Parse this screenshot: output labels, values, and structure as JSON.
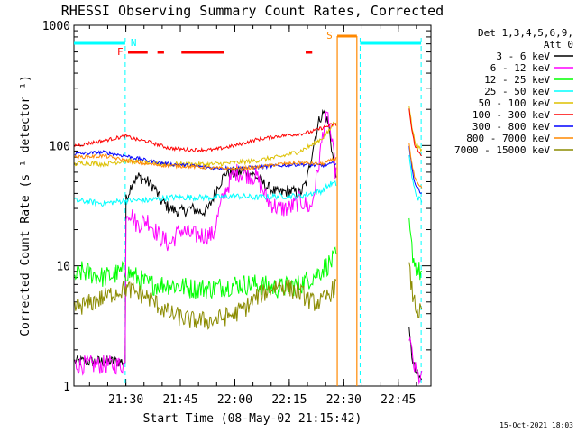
{
  "chart_data": {
    "type": "line",
    "title": "RHESSI Observing Summary Count Rates, Corrected",
    "xlabel": "Start Time (08-May-02 21:15:42)",
    "ylabel": "Corrected Count Rate (s⁻¹ detector⁻¹)",
    "yscale": "log",
    "ylim": [
      1,
      1000
    ],
    "xlim": [
      21.2617,
      22.9
    ],
    "xticks": [
      {
        "t": 21.5,
        "label": "21:30"
      },
      {
        "t": 21.75,
        "label": "21:45"
      },
      {
        "t": 22.0,
        "label": "22:00"
      },
      {
        "t": 22.25,
        "label": "22:15"
      },
      {
        "t": 22.5,
        "label": "22:30"
      },
      {
        "t": 22.75,
        "label": "22:45"
      }
    ],
    "yticks": [
      {
        "v": 1,
        "label": "1"
      },
      {
        "v": 10,
        "label": "10"
      },
      {
        "v": 100,
        "label": "100"
      },
      {
        "v": 1000,
        "label": "1000"
      }
    ],
    "grid": false,
    "legend_position": "top-right",
    "legend_header": [
      "Det 1,3,4,5,6,9,",
      "Att 0"
    ],
    "footer_date": "15-Oct-2021 18:03",
    "series": [
      {
        "name": "3 - 6 keV",
        "color": "#000000",
        "noise": 0.05,
        "x": [
          21.265,
          21.497,
          21.497,
          21.5,
          21.53,
          21.56,
          21.6,
          21.63,
          21.66,
          21.7,
          21.75,
          21.8,
          21.85,
          21.88,
          21.92,
          21.96,
          22.0,
          22.05,
          22.1,
          22.15,
          22.2,
          22.25,
          22.3,
          22.33,
          22.36,
          22.39,
          22.41,
          22.43,
          22.45,
          22.465
        ],
        "y": [
          1.6,
          1.6,
          30,
          35,
          50,
          55,
          50,
          45,
          35,
          30,
          28,
          30,
          28,
          30,
          45,
          60,
          58,
          62,
          55,
          45,
          40,
          42,
          40,
          50,
          100,
          170,
          190,
          150,
          80,
          60
        ]
      },
      {
        "name": "6 - 12 keV",
        "color": "#ff00ff",
        "noise": 0.08,
        "x": [
          21.265,
          21.497,
          21.497,
          21.52,
          21.55,
          21.6,
          21.65,
          21.7,
          21.75,
          21.8,
          21.85,
          21.9,
          21.95,
          22.0,
          22.05,
          22.1,
          22.15,
          22.2,
          22.25,
          22.3,
          22.35,
          22.38,
          22.41,
          22.43,
          22.45,
          22.465
        ],
        "y": [
          1.5,
          1.5,
          28,
          28,
          22,
          24,
          18,
          15,
          20,
          18,
          18,
          18,
          40,
          60,
          58,
          55,
          35,
          30,
          30,
          35,
          30,
          60,
          150,
          170,
          90,
          55
        ]
      },
      {
        "name": "12 - 25 keV",
        "color": "#00ff00",
        "noise": 0.09,
        "x": [
          21.265,
          21.3,
          21.4,
          21.5,
          21.55,
          21.6,
          21.7,
          21.8,
          21.9,
          22.0,
          22.1,
          22.2,
          22.3,
          22.35,
          22.39,
          22.42,
          22.45,
          22.465
        ],
        "y": [
          8,
          9,
          8,
          9,
          8,
          7,
          7,
          6.5,
          6.5,
          7,
          7,
          6.5,
          7,
          8,
          9,
          10,
          11,
          12
        ]
      },
      {
        "name": "25 - 50 keV",
        "color": "#00ffff",
        "noise": 0.025,
        "x": [
          21.265,
          21.4,
          21.5,
          21.6,
          21.7,
          21.8,
          21.9,
          22.0,
          22.1,
          22.2,
          22.3,
          22.4,
          22.44,
          22.465
        ],
        "y": [
          35,
          33,
          35,
          35,
          37,
          37,
          37,
          38,
          37,
          38,
          38,
          42,
          48,
          48
        ]
      },
      {
        "name": "50 - 100 keV",
        "color": "#ddc000",
        "noise": 0.02,
        "x": [
          21.265,
          21.3,
          21.4,
          21.5,
          21.6,
          21.7,
          21.8,
          21.9,
          22.0,
          22.1,
          22.2,
          22.3,
          22.35,
          22.4,
          22.43,
          22.45,
          22.465
        ],
        "y": [
          70,
          72,
          70,
          75,
          72,
          70,
          70,
          70,
          72,
          75,
          80,
          90,
          100,
          115,
          130,
          150,
          160
        ]
      },
      {
        "name": "100 - 300 keV",
        "color": "#ff0000",
        "noise": 0.015,
        "x": [
          21.265,
          21.3,
          21.4,
          21.45,
          21.5,
          21.55,
          21.6,
          21.7,
          21.8,
          21.9,
          22.0,
          22.1,
          22.2,
          22.3,
          22.35,
          22.4,
          22.45,
          22.465
        ],
        "y": [
          100,
          102,
          110,
          115,
          120,
          112,
          108,
          95,
          92,
          92,
          100,
          112,
          120,
          125,
          130,
          140,
          150,
          148
        ]
      },
      {
        "name": "300 - 800 keV",
        "color": "#0000ff",
        "noise": 0.015,
        "x": [
          21.265,
          21.4,
          21.5,
          21.6,
          21.7,
          21.8,
          21.9,
          22.0,
          22.1,
          22.2,
          22.3,
          22.4,
          22.44,
          22.465
        ],
        "y": [
          85,
          88,
          82,
          75,
          70,
          68,
          65,
          65,
          66,
          68,
          70,
          68,
          70,
          72
        ]
      },
      {
        "name": "800 - 7000 keV",
        "color": "#ff8800",
        "noise": 0.015,
        "x": [
          21.265,
          21.4,
          21.5,
          21.6,
          21.7,
          21.8,
          21.9,
          22.0,
          22.1,
          22.2,
          22.3,
          22.4,
          22.44,
          22.465
        ],
        "y": [
          80,
          82,
          75,
          70,
          68,
          67,
          65,
          64,
          66,
          70,
          72,
          70,
          75,
          78
        ]
      },
      {
        "name": "7000 - 15000 keV",
        "color": "#8b8b00",
        "noise": 0.08,
        "x": [
          21.265,
          21.35,
          21.45,
          21.5,
          21.6,
          21.7,
          21.8,
          21.9,
          22.0,
          22.05,
          22.1,
          22.2,
          22.3,
          22.35,
          22.4,
          22.44,
          22.465
        ],
        "y": [
          4.5,
          5,
          6,
          6.5,
          5.5,
          4,
          3.5,
          3.5,
          4,
          4.5,
          5.5,
          7,
          6,
          5,
          5,
          6,
          7
        ]
      }
    ],
    "flags": [
      {
        "label": "N",
        "color": "#00ffff"
      },
      {
        "label": "F",
        "color": "#ff0000"
      },
      {
        "label": "S",
        "color": "#ff8800"
      }
    ]
  }
}
